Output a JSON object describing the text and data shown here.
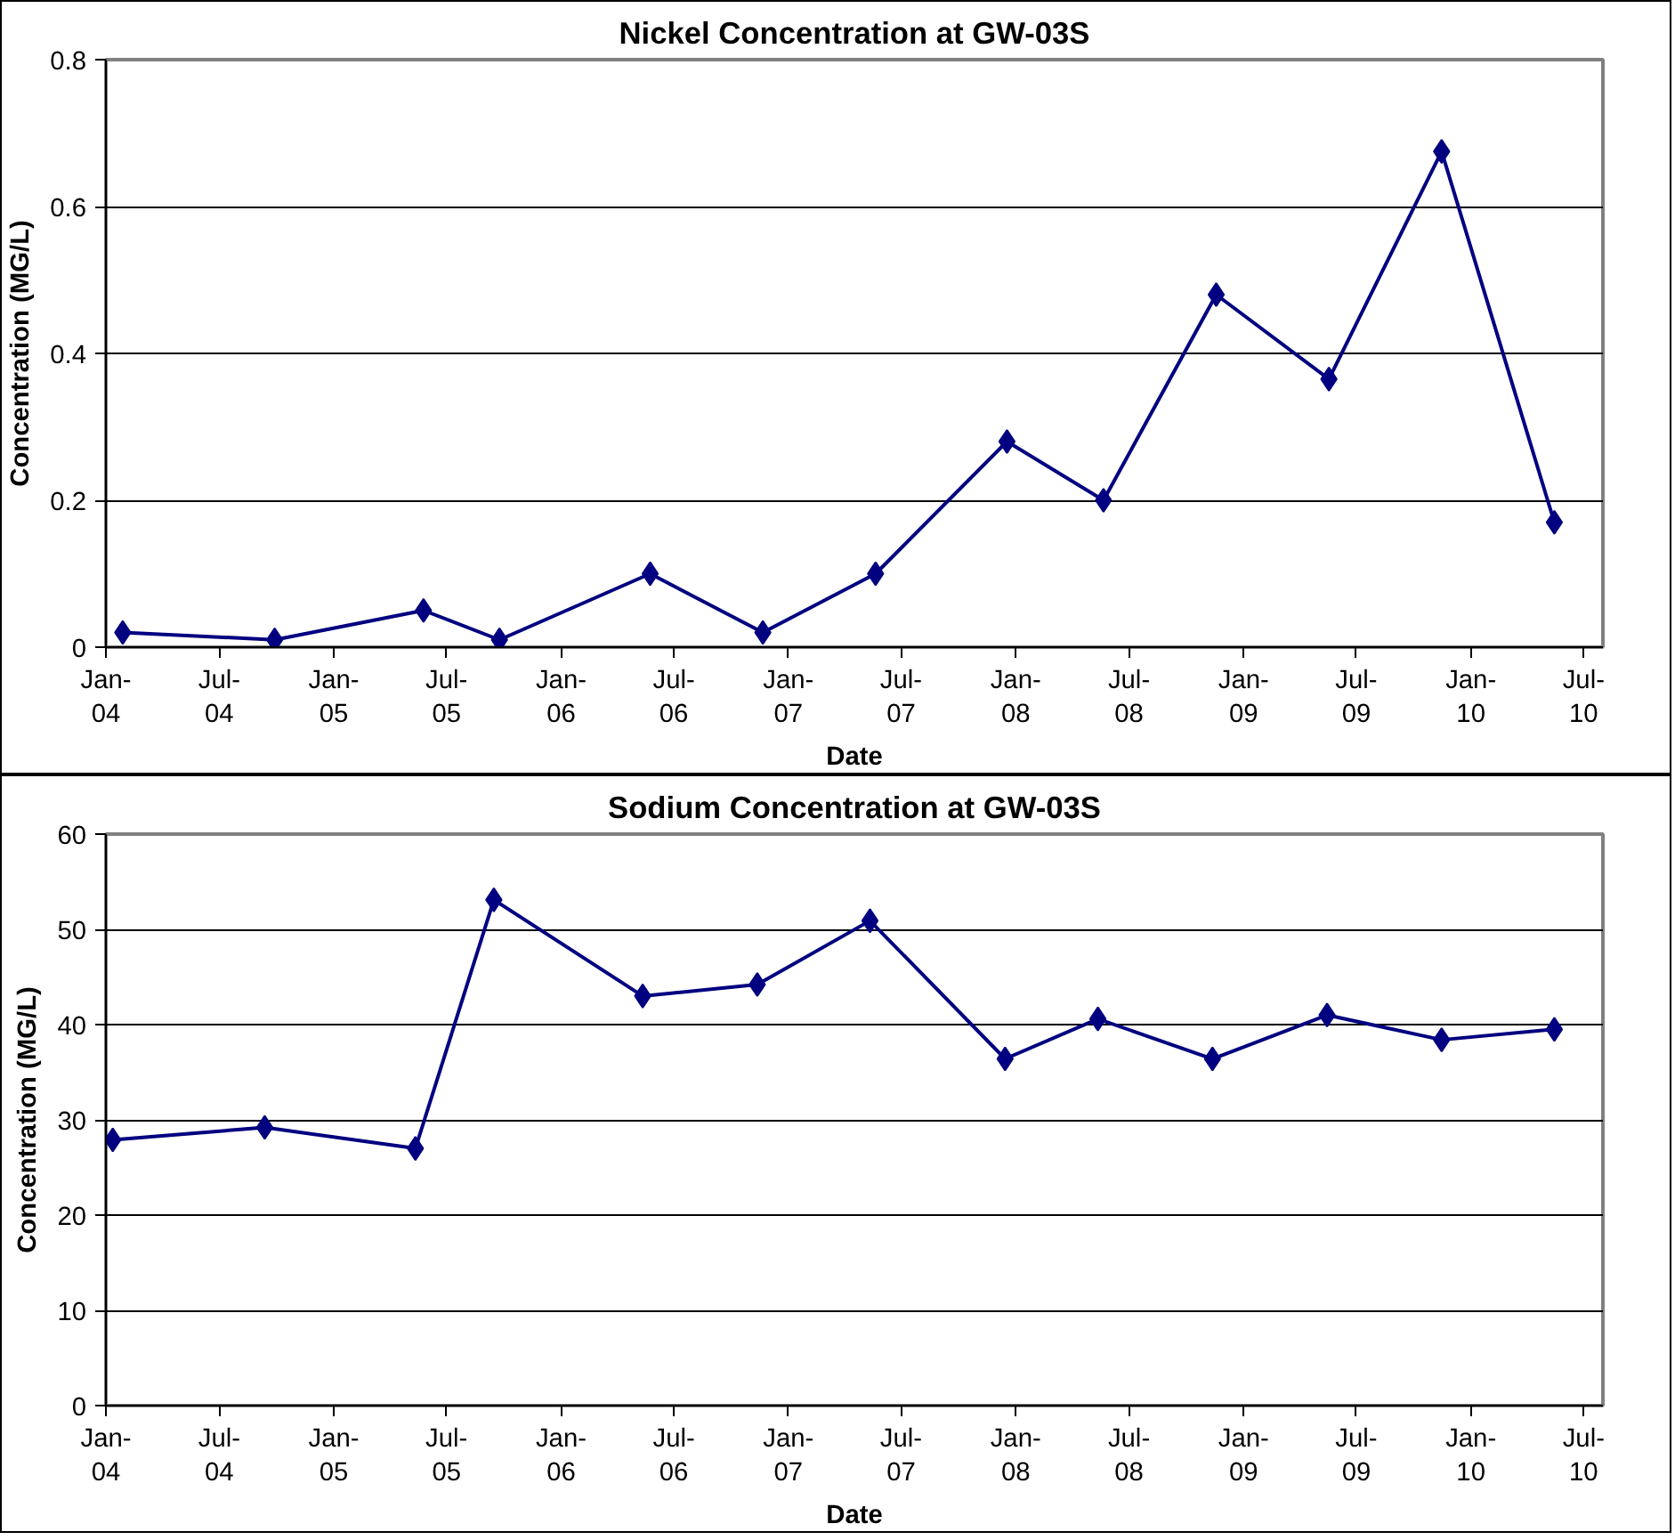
{
  "chart_data": [
    {
      "type": "line",
      "title": "Nickel Concentration at GW-03S",
      "xlabel": "Date",
      "ylabel": "Concentration (MG/L)",
      "x": [
        "2004-01-28",
        "2004-09-28",
        "2005-05-25",
        "2005-09-24",
        "2006-05-24",
        "2006-11-21",
        "2007-05-21",
        "2007-12-18",
        "2008-05-21",
        "2008-11-18",
        "2009-05-18",
        "2009-11-15",
        "2010-05-15"
      ],
      "series": [
        {
          "color": "#000080",
          "values": [
            0.02,
            0.01,
            0.05,
            0.01,
            0.1,
            0.02,
            0.1,
            0.28,
            0.2,
            0.48,
            0.365,
            0.675,
            0.17
          ]
        }
      ],
      "xlim": [
        "2004-01-01",
        "2010-08-01"
      ],
      "xticks": [
        {
          "value": "2004-01-01",
          "label": "Jan-04"
        },
        {
          "value": "2004-07-01",
          "label": "Jul-04"
        },
        {
          "value": "2005-01-01",
          "label": "Jan-05"
        },
        {
          "value": "2005-07-01",
          "label": "Jul-05"
        },
        {
          "value": "2006-01-01",
          "label": "Jan-06"
        },
        {
          "value": "2006-07-01",
          "label": "Jul-06"
        },
        {
          "value": "2007-01-01",
          "label": "Jan-07"
        },
        {
          "value": "2007-07-01",
          "label": "Jul-07"
        },
        {
          "value": "2008-01-01",
          "label": "Jan-08"
        },
        {
          "value": "2008-07-01",
          "label": "Jul-08"
        },
        {
          "value": "2009-01-01",
          "label": "Jan-09"
        },
        {
          "value": "2009-07-01",
          "label": "Jul-09"
        },
        {
          "value": "2010-01-01",
          "label": "Jan-10"
        },
        {
          "value": "2010-07-01",
          "label": "Jul-10"
        }
      ],
      "ylim": [
        0,
        0.8
      ],
      "yticks": [
        0,
        0.2,
        0.4,
        0.6,
        0.8
      ],
      "grid": "y",
      "marker": "diamond",
      "line_style": "solid"
    },
    {
      "type": "line",
      "title": "Sodium Concentration at GW-03S",
      "xlabel": "Date",
      "ylabel": "Concentration (MG/L)",
      "x": [
        "2004-01-12",
        "2004-09-12",
        "2005-05-12",
        "2005-09-15",
        "2006-05-12",
        "2006-11-12",
        "2007-05-12",
        "2007-12-15",
        "2008-05-12",
        "2008-11-12",
        "2009-05-15",
        "2009-11-15",
        "2010-05-15"
      ],
      "series": [
        {
          "color": "#000080",
          "values": [
            27.9,
            29.2,
            27.0,
            53.1,
            43.0,
            44.2,
            50.9,
            36.4,
            40.6,
            36.4,
            41.0,
            38.4,
            39.5
          ]
        }
      ],
      "xlim": [
        "2004-01-01",
        "2010-08-01"
      ],
      "xticks": [
        {
          "value": "2004-01-01",
          "label": "Jan-04"
        },
        {
          "value": "2004-07-01",
          "label": "Jul-04"
        },
        {
          "value": "2005-01-01",
          "label": "Jan-05"
        },
        {
          "value": "2005-07-01",
          "label": "Jul-05"
        },
        {
          "value": "2006-01-01",
          "label": "Jan-06"
        },
        {
          "value": "2006-07-01",
          "label": "Jul-06"
        },
        {
          "value": "2007-01-01",
          "label": "Jan-07"
        },
        {
          "value": "2007-07-01",
          "label": "Jul-07"
        },
        {
          "value": "2008-01-01",
          "label": "Jan-08"
        },
        {
          "value": "2008-07-01",
          "label": "Jul-08"
        },
        {
          "value": "2009-01-01",
          "label": "Jan-09"
        },
        {
          "value": "2009-07-01",
          "label": "Jul-09"
        },
        {
          "value": "2010-01-01",
          "label": "Jan-10"
        },
        {
          "value": "2010-07-01",
          "label": "Jul-10"
        }
      ],
      "ylim": [
        0,
        60
      ],
      "yticks": [
        0,
        10,
        20,
        30,
        40,
        50,
        60
      ],
      "grid": "y",
      "marker": "diamond",
      "line_style": "solid"
    }
  ]
}
